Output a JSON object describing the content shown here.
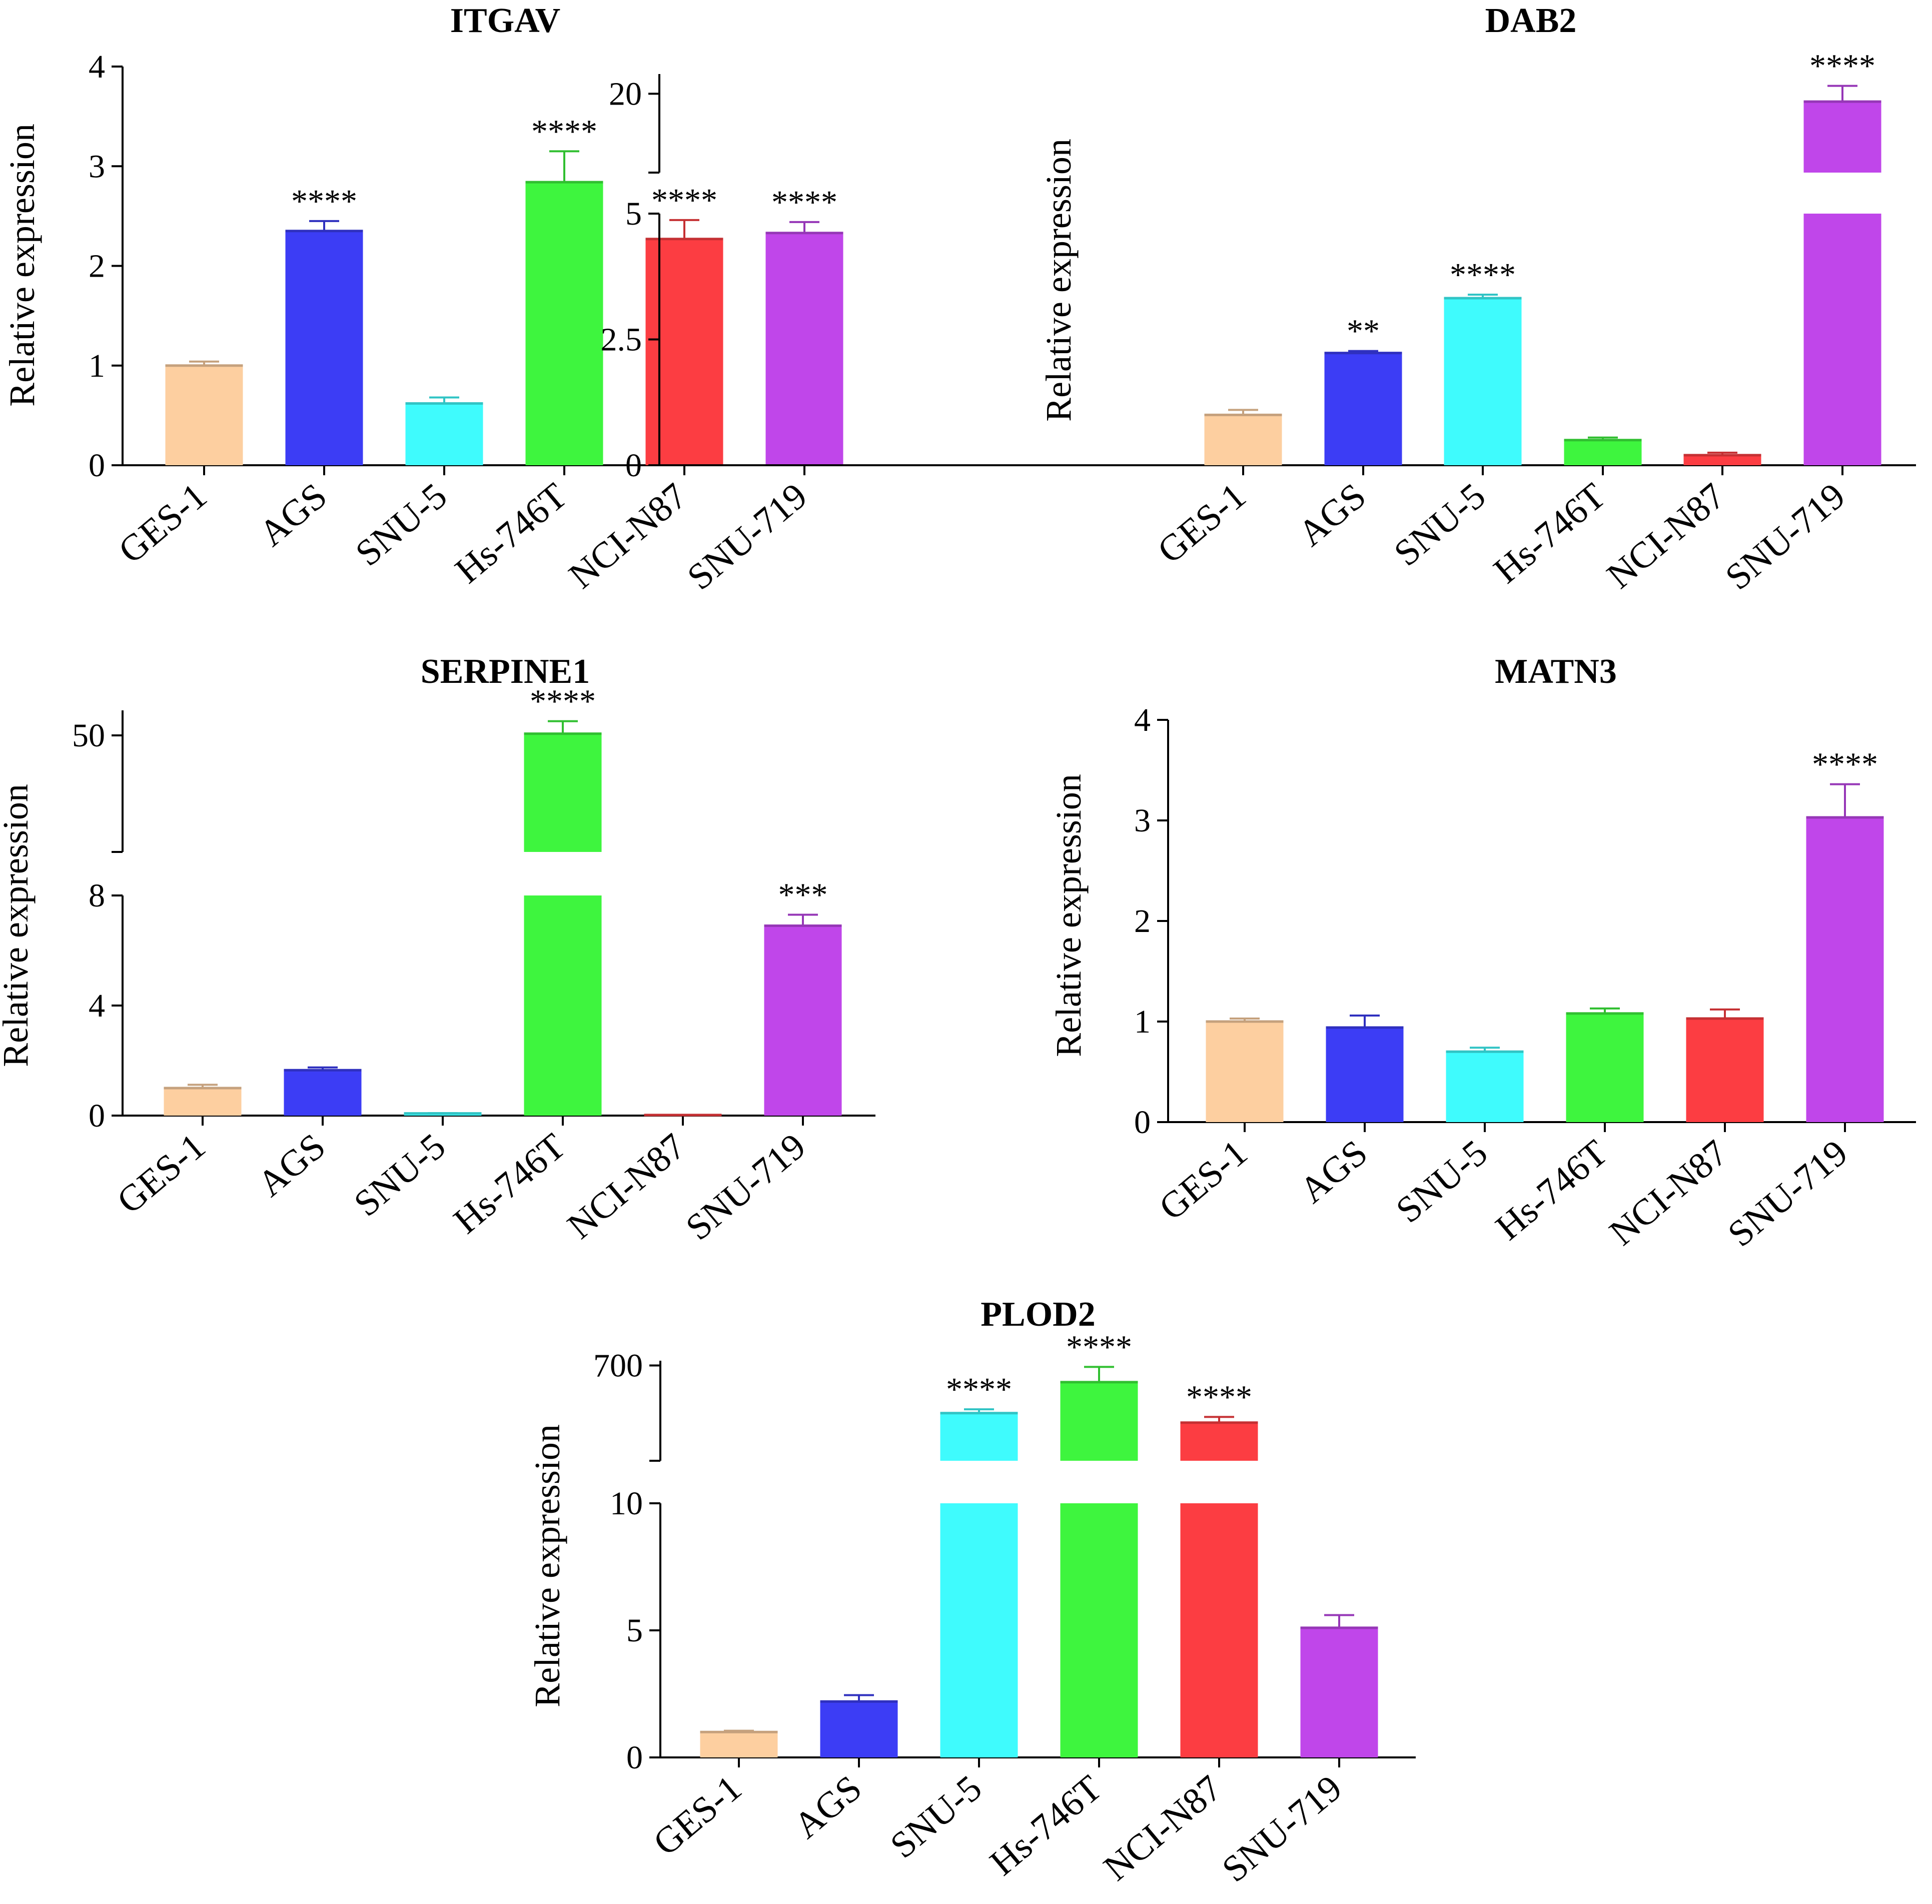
{
  "ylabel": "Relative expression",
  "categories": [
    "GES-1",
    "AGS",
    "SNU-5",
    "Hs-746T",
    "NCI-N87",
    "SNU-719"
  ],
  "colors": {
    "GES-1": "#fdcfa0",
    "AGS": "#3c3df5",
    "SNU-5": "#3ffbfd",
    "Hs-746T": "#3ef53e",
    "NCI-N87": "#fc3d42",
    "SNU-719": "#c046ea"
  },
  "chart_data": [
    {
      "type": "bar",
      "title": "ITGAV",
      "ylabel": "Relative expression",
      "categories": [
        "GES-1",
        "AGS",
        "SNU-5",
        "Hs-746T",
        "NCI-N87",
        "SNU-719"
      ],
      "values": [
        1.0,
        2.35,
        0.62,
        2.84,
        2.27,
        2.33
      ],
      "errors": [
        0.04,
        0.1,
        0.06,
        0.31,
        0.19,
        0.11
      ],
      "significance": [
        "",
        "****",
        "",
        "****",
        "****",
        "****"
      ],
      "ylim": [
        0,
        4
      ],
      "yticks": [
        "0",
        "1",
        "2",
        "3",
        "4"
      ]
    },
    {
      "type": "bar",
      "title": "DAB2",
      "ylabel": "Relative expression",
      "categories": [
        "GES-1",
        "AGS",
        "SNU-5",
        "Hs-746T",
        "NCI-N87",
        "SNU-719"
      ],
      "values": [
        1.0,
        2.23,
        3.32,
        0.5,
        0.2,
        19.8
      ],
      "errors": [
        0.1,
        0.04,
        0.07,
        0.05,
        0.05,
        0.4
      ],
      "significance": [
        "",
        "**",
        "****",
        "",
        "",
        "****"
      ],
      "axis_break": [
        5,
        18
      ],
      "ylim": [
        0,
        20.5
      ],
      "yticks": [
        "0",
        "2.5",
        "5",
        "20"
      ]
    },
    {
      "type": "bar",
      "title": "SERPINE1",
      "ylabel": "Relative expression",
      "categories": [
        "GES-1",
        "AGS",
        "SNU-5",
        "Hs-746T",
        "NCI-N87",
        "SNU-719"
      ],
      "values": [
        1.0,
        1.65,
        0.08,
        50.2,
        0.02,
        6.9
      ],
      "errors": [
        0.12,
        0.1,
        0.01,
        1.5,
        0.0,
        0.4
      ],
      "significance": [
        "",
        "",
        "",
        "****",
        "",
        "***"
      ],
      "axis_break": [
        8,
        36
      ],
      "ylim": [
        0,
        53
      ],
      "yticks": [
        "0",
        "4",
        "8",
        "50"
      ]
    },
    {
      "type": "bar",
      "title": "MATN3",
      "ylabel": "Relative expression",
      "categories": [
        "GES-1",
        "AGS",
        "SNU-5",
        "Hs-746T",
        "NCI-N87",
        "SNU-719"
      ],
      "values": [
        1.0,
        0.94,
        0.7,
        1.08,
        1.03,
        3.03
      ],
      "errors": [
        0.03,
        0.12,
        0.04,
        0.05,
        0.09,
        0.33
      ],
      "significance": [
        "",
        "",
        "",
        "",
        "",
        "****"
      ],
      "ylim": [
        0,
        4
      ],
      "yticks": [
        "0",
        "1",
        "2",
        "3",
        "4"
      ]
    },
    {
      "type": "bar",
      "title": "PLOD2",
      "ylabel": "Relative expression",
      "categories": [
        "GES-1",
        "AGS",
        "SNU-5",
        "Hs-746T",
        "NCI-N87",
        "SNU-719"
      ],
      "values": [
        1.0,
        2.2,
        600,
        665,
        580,
        5.1
      ],
      "errors": [
        0.05,
        0.25,
        8,
        32,
        12,
        0.5
      ],
      "significance": [
        "",
        "",
        "****",
        "****",
        "****",
        ""
      ],
      "axis_break": [
        10,
        500
      ],
      "ylim": [
        0,
        710
      ],
      "yticks": [
        "0",
        "5",
        "10",
        "700"
      ]
    }
  ]
}
